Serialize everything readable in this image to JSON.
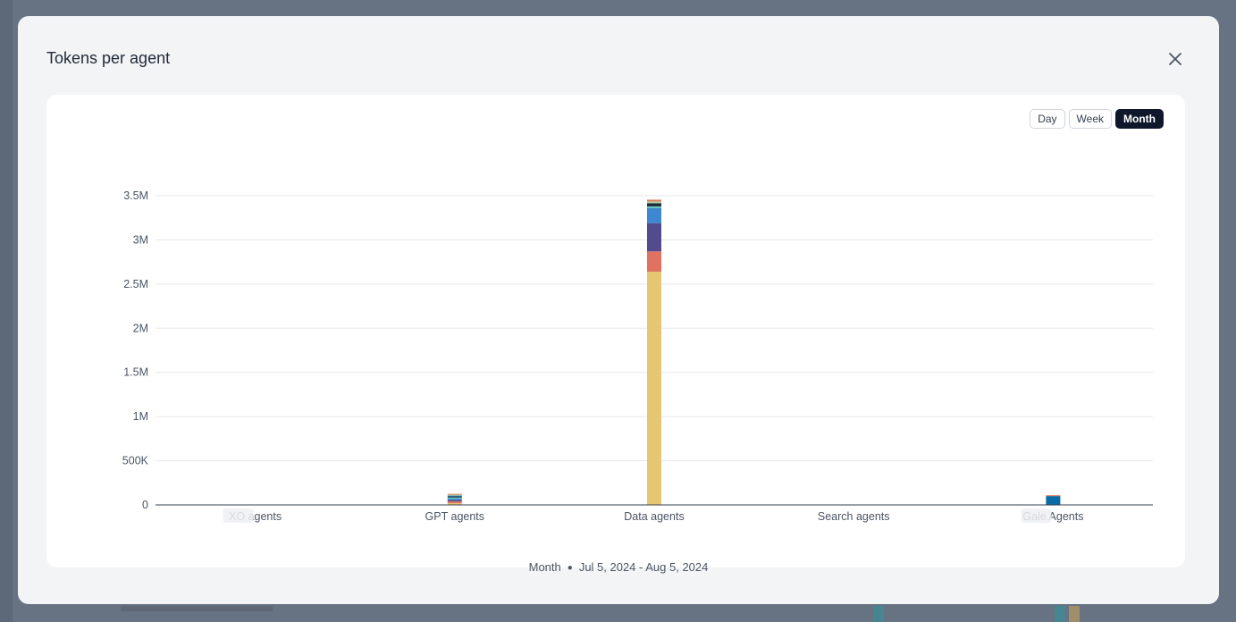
{
  "modal": {
    "title": "Tokens per agent",
    "close_icon": "close-icon"
  },
  "toggles": [
    {
      "label": "Day",
      "active": false
    },
    {
      "label": "Week",
      "active": false
    },
    {
      "label": "Month",
      "active": true
    }
  ],
  "footer": {
    "period": "Month",
    "range": "Jul 5, 2024 - Aug 5, 2024"
  },
  "colors": {
    "active_toggle": "#0f172a",
    "gridline": "#e5e7eb",
    "axis": "#374151"
  },
  "chart_data": {
    "type": "bar",
    "stacked": true,
    "categories": [
      "XO agents",
      "GPT agents",
      "Data agents",
      "Search agents",
      "Gale Agents"
    ],
    "y_ticks": [
      "0",
      "500K",
      "1M",
      "1.5M",
      "2M",
      "2.5M",
      "3M",
      "3.5M"
    ],
    "ylim": [
      0,
      3500000
    ],
    "grid": true,
    "legend": "none",
    "redacted_label_categories": [
      0,
      4
    ],
    "series": [
      {
        "color": "#e6c672",
        "values": [
          0,
          20000,
          2640000,
          0,
          0
        ]
      },
      {
        "color": "#e07262",
        "values": [
          0,
          20000,
          230000,
          0,
          0
        ]
      },
      {
        "color": "#544a8e",
        "values": [
          0,
          15000,
          320000,
          0,
          0
        ]
      },
      {
        "color": "#3d88d0",
        "values": [
          0,
          15000,
          170000,
          0,
          0
        ]
      },
      {
        "color": "#5ec3b9",
        "values": [
          0,
          15000,
          20000,
          0,
          0
        ]
      },
      {
        "color": "#1f2937",
        "values": [
          0,
          10000,
          35000,
          0,
          0
        ]
      },
      {
        "color": "#0a6aa6",
        "values": [
          0,
          10000,
          0,
          0,
          100000
        ]
      },
      {
        "color": "#a8d5a2",
        "values": [
          0,
          10000,
          20000,
          0,
          0
        ]
      },
      {
        "color": "#e2785e",
        "values": [
          0,
          10000,
          20000,
          0,
          10000
        ]
      }
    ]
  }
}
